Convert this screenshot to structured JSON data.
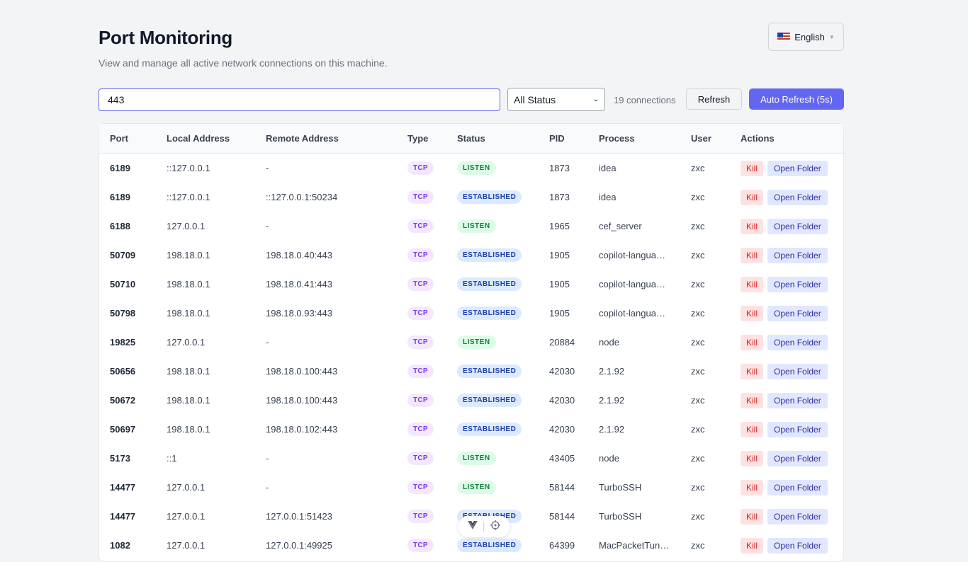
{
  "header": {
    "title": "Port Monitoring",
    "subtitle": "View and manage all active network connections on this machine.",
    "language": "English"
  },
  "toolbar": {
    "search_value": "443",
    "status_filter": "All Status",
    "connection_count": "19 connections",
    "refresh_label": "Refresh",
    "auto_refresh_label": "Auto Refresh (5s)"
  },
  "table": {
    "columns": [
      "Port",
      "Local Address",
      "Remote Address",
      "Type",
      "Status",
      "PID",
      "Process",
      "User",
      "Actions"
    ],
    "actions": {
      "kill": "Kill",
      "open_folder": "Open Folder"
    },
    "rows": [
      {
        "port": "6189",
        "local": "::127.0.0.1",
        "remote": "-",
        "type": "TCP",
        "status": "LISTEN",
        "pid": "1873",
        "process": "idea",
        "user": "zxc"
      },
      {
        "port": "6189",
        "local": "::127.0.0.1",
        "remote": "::127.0.0.1:50234",
        "type": "TCP",
        "status": "ESTABLISHED",
        "pid": "1873",
        "process": "idea",
        "user": "zxc"
      },
      {
        "port": "6188",
        "local": "127.0.0.1",
        "remote": "-",
        "type": "TCP",
        "status": "LISTEN",
        "pid": "1965",
        "process": "cef_server",
        "user": "zxc"
      },
      {
        "port": "50709",
        "local": "198.18.0.1",
        "remote": "198.18.0.40:443",
        "type": "TCP",
        "status": "ESTABLISHED",
        "pid": "1905",
        "process": "copilot-langua…",
        "user": "zxc"
      },
      {
        "port": "50710",
        "local": "198.18.0.1",
        "remote": "198.18.0.41:443",
        "type": "TCP",
        "status": "ESTABLISHED",
        "pid": "1905",
        "process": "copilot-langua…",
        "user": "zxc"
      },
      {
        "port": "50798",
        "local": "198.18.0.1",
        "remote": "198.18.0.93:443",
        "type": "TCP",
        "status": "ESTABLISHED",
        "pid": "1905",
        "process": "copilot-langua…",
        "user": "zxc"
      },
      {
        "port": "19825",
        "local": "127.0.0.1",
        "remote": "-",
        "type": "TCP",
        "status": "LISTEN",
        "pid": "20884",
        "process": "node",
        "user": "zxc"
      },
      {
        "port": "50656",
        "local": "198.18.0.1",
        "remote": "198.18.0.100:443",
        "type": "TCP",
        "status": "ESTABLISHED",
        "pid": "42030",
        "process": "2.1.92",
        "user": "zxc"
      },
      {
        "port": "50672",
        "local": "198.18.0.1",
        "remote": "198.18.0.100:443",
        "type": "TCP",
        "status": "ESTABLISHED",
        "pid": "42030",
        "process": "2.1.92",
        "user": "zxc"
      },
      {
        "port": "50697",
        "local": "198.18.0.1",
        "remote": "198.18.0.102:443",
        "type": "TCP",
        "status": "ESTABLISHED",
        "pid": "42030",
        "process": "2.1.92",
        "user": "zxc"
      },
      {
        "port": "5173",
        "local": "::1",
        "remote": "-",
        "type": "TCP",
        "status": "LISTEN",
        "pid": "43405",
        "process": "node",
        "user": "zxc"
      },
      {
        "port": "14477",
        "local": "127.0.0.1",
        "remote": "-",
        "type": "TCP",
        "status": "LISTEN",
        "pid": "58144",
        "process": "TurboSSH",
        "user": "zxc"
      },
      {
        "port": "14477",
        "local": "127.0.0.1",
        "remote": "127.0.0.1:51423",
        "type": "TCP",
        "status": "ESTABLISHED",
        "pid": "58144",
        "process": "TurboSSH",
        "user": "zxc"
      },
      {
        "port": "1082",
        "local": "127.0.0.1",
        "remote": "127.0.0.1:49925",
        "type": "TCP",
        "status": "ESTABLISHED",
        "pid": "64399",
        "process": "MacPacketTun…",
        "user": "zxc"
      }
    ]
  }
}
